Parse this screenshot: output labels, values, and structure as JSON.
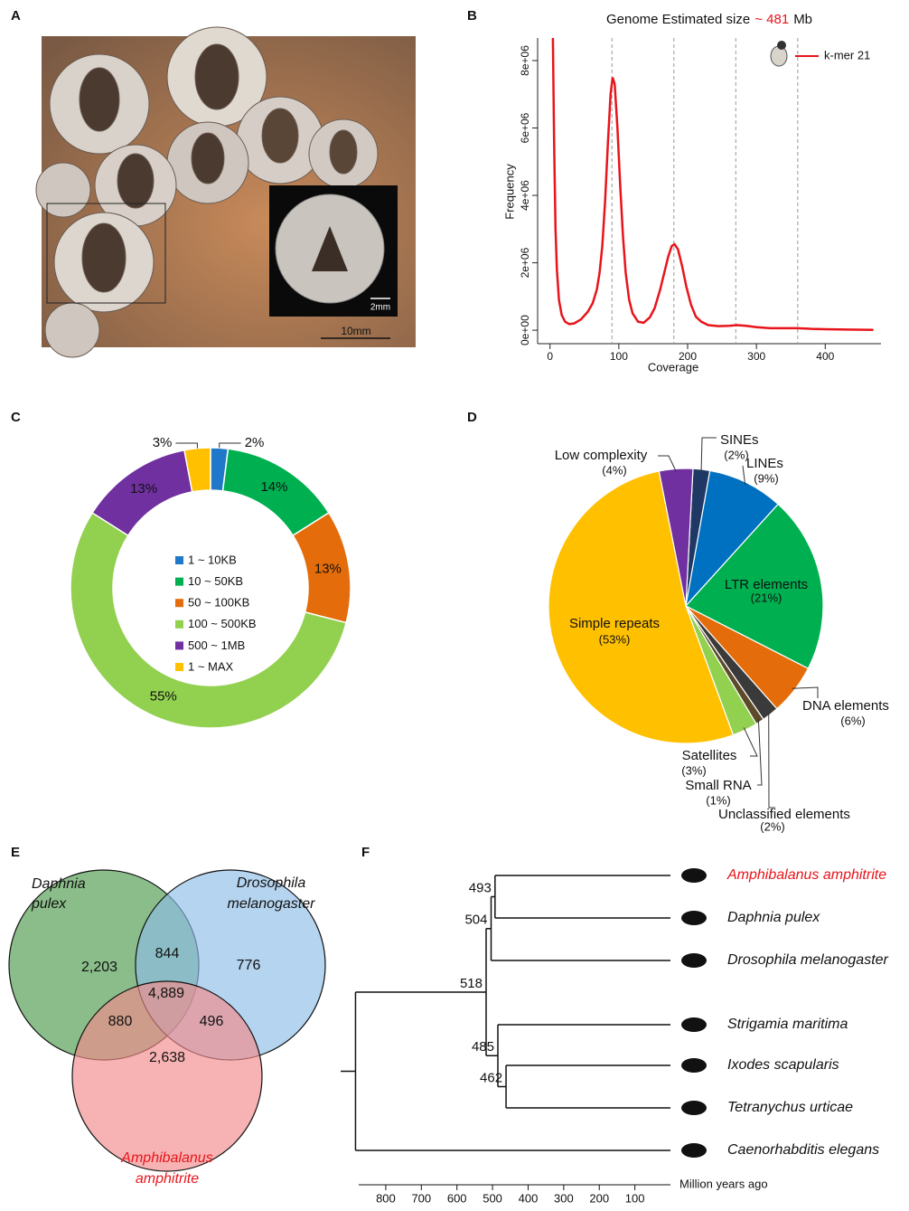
{
  "panel_labels": [
    "A",
    "B",
    "C",
    "D",
    "E",
    "F"
  ],
  "photo": {
    "scale_bar": "10mm",
    "inset_scale_bar": "2mm"
  },
  "chart_data": [
    {
      "type": "line",
      "title": [
        "Genome Estimated size",
        "~ 481",
        "Mb"
      ],
      "title_highlight": 1,
      "title_highlight_color": "#e8141b",
      "x_label": "Coverage",
      "y_label": "Frequency",
      "x": [
        4,
        6,
        8,
        10,
        13,
        17,
        22,
        28,
        35,
        45,
        55,
        62,
        68,
        72,
        76,
        80,
        84,
        88,
        91,
        94,
        98,
        102,
        106,
        110,
        115,
        120,
        128,
        136,
        145,
        152,
        160,
        166,
        172,
        177,
        181,
        186,
        192,
        198,
        205,
        212,
        220,
        230,
        245,
        260,
        272,
        285,
        300,
        320,
        340,
        360,
        380,
        400,
        430,
        470
      ],
      "series": [
        {
          "name": "k-mer 21",
          "color": "#e8141b",
          "values": [
            9000000,
            5500000,
            3000000,
            1800000,
            900000,
            450000,
            250000,
            180000,
            200000,
            320000,
            550000,
            800000,
            1200000,
            1700000,
            2500000,
            3800000,
            5500000,
            7000000,
            7500000,
            7300000,
            6000000,
            4300000,
            2800000,
            1700000,
            900000,
            500000,
            250000,
            220000,
            380000,
            650000,
            1200000,
            1700000,
            2200000,
            2500000,
            2550000,
            2400000,
            1900000,
            1300000,
            750000,
            400000,
            250000,
            150000,
            120000,
            130000,
            150000,
            130000,
            90000,
            60000,
            60000,
            60000,
            40000,
            30000,
            20000,
            10000
          ]
        }
      ],
      "xlim": [
        -18,
        481
      ],
      "xticks": [
        0,
        100,
        200,
        300,
        400
      ],
      "ylim": [
        -400000,
        8670000
      ],
      "yticks": [
        {
          "value": 0,
          "label": "0e+00"
        },
        {
          "value": 2000000,
          "label": "2e+06"
        },
        {
          "value": 4000000,
          "label": "4e+06"
        },
        {
          "value": 6000000,
          "label": "6e+06"
        },
        {
          "value": 8000000,
          "label": "8e+06"
        }
      ],
      "vlines": [
        90,
        180,
        270,
        360
      ],
      "legend": "upper right"
    },
    {
      "type": "donut",
      "categories": [
        "1 ~ 10KB",
        "10 ~ 50KB",
        "50 ~ 100KB",
        "100 ~ 500KB",
        "500 ~ 1MB",
        "1 ~ MAX"
      ],
      "values": [
        2,
        14,
        13,
        55,
        13,
        3
      ],
      "value_labels": [
        "2%",
        "14%",
        "13%",
        "55%",
        "13%",
        "3%"
      ],
      "colors": [
        "#1f78c8",
        "#00b050",
        "#e46c0a",
        "#92d050",
        "#7030a0",
        "#ffc000"
      ]
    },
    {
      "type": "pie",
      "categories": [
        "SINEs",
        "LINEs",
        "LTR elements",
        "DNA elements",
        "Unclassified elements",
        "Small RNA",
        "Satellites",
        "Simple repeats",
        "Low complexity"
      ],
      "values": [
        2,
        9,
        21,
        6,
        2,
        1,
        3,
        53,
        4
      ],
      "value_labels": [
        "(2%)",
        "(9%)",
        "(21%)",
        "(6%)",
        "(2%)",
        "(1%)",
        "(3%)",
        "(53%)",
        "(4%)"
      ],
      "colors": [
        "#1f3864",
        "#0070c0",
        "#00b050",
        "#e46c0a",
        "#3a3a3a",
        "#5c4a2a",
        "#92d050",
        "#ffc000",
        "#7030a0"
      ]
    },
    {
      "type": "venn",
      "sets": [
        {
          "label": [
            "Daphnia",
            "pulex"
          ],
          "color": "#4c9a4c"
        },
        {
          "label": [
            "Drosophila",
            "melanogaster"
          ],
          "color": "#8dbde6"
        },
        {
          "label": [
            "Amphibalanus",
            "amphitrite"
          ],
          "color": "#f28b8b",
          "label_color": "#e8141b"
        }
      ],
      "values": [
        2203,
        844,
        776,
        4889,
        880,
        496,
        2638
      ],
      "value_labels": [
        "2,203",
        "844",
        "776",
        "4,889",
        "880",
        "496",
        "2,638"
      ]
    },
    {
      "type": "tree",
      "tree": {
        "age": 885,
        "children": [
          {
            "age": 518,
            "children": [
              {
                "age": 504,
                "children": [
                  {
                    "age": 493,
                    "children": [
                      {
                        "name": "Amphibalanus amphitrite",
                        "color": "#e8141b"
                      },
                      {
                        "name": "Daphnia pulex"
                      }
                    ]
                  },
                  {
                    "name": "Drosophila melanogaster"
                  }
                ]
              },
              {
                "age": 485,
                "children": [
                  {
                    "name": "Strigamia maritima"
                  },
                  {
                    "age": 462,
                    "children": [
                      {
                        "name": "Ixodes scapularis"
                      },
                      {
                        "name": "Tetranychus urticae"
                      }
                    ]
                  }
                ]
              }
            ]
          },
          {
            "name": "Caenorhabditis elegans"
          }
        ]
      },
      "xlim": [
        876,
        0
      ],
      "xticks": [
        800,
        700,
        600,
        500,
        400,
        300,
        200,
        100
      ],
      "x_label": "Million years ago"
    }
  ]
}
